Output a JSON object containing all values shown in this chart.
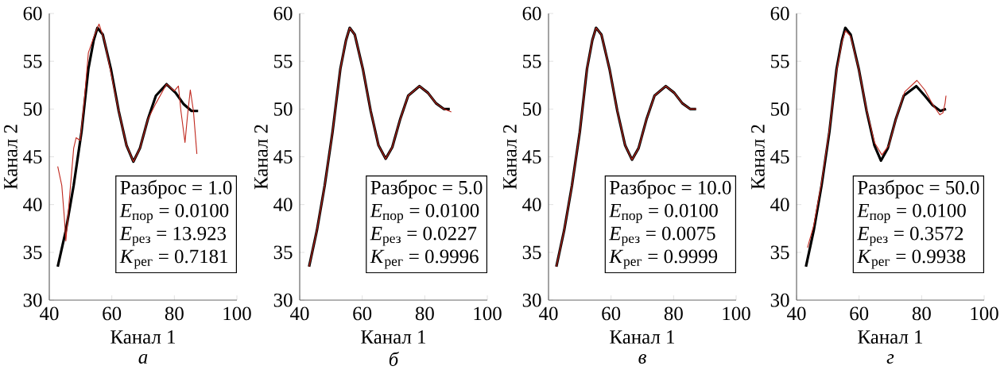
{
  "chart_data": [
    {
      "type": "line",
      "xlabel": "Канал 1",
      "ylabel": "Канал 2",
      "xlim": [
        40,
        100
      ],
      "ylim": [
        30,
        60
      ],
      "xticks": [
        40,
        60,
        80,
        100
      ],
      "yticks": [
        30,
        35,
        40,
        45,
        50,
        55,
        60
      ],
      "series": [
        {
          "color": "#000000",
          "x": [
            42.7,
            45.3,
            47.8,
            50.3,
            52.5,
            54.2,
            55.4,
            57.1,
            59.7,
            62.2,
            64.7,
            66.9,
            69.0,
            71.5,
            74.1,
            77.5,
            80.4,
            83.0,
            85.5,
            87.6
          ],
          "values": [
            33.5,
            37.3,
            42.0,
            47.6,
            54.2,
            57.2,
            58.5,
            57.8,
            54.2,
            49.8,
            46.2,
            44.5,
            45.9,
            48.9,
            51.4,
            52.6,
            51.7,
            50.5,
            49.8,
            49.8
          ]
        },
        {
          "color": "#c0281e",
          "x": [
            42.7,
            44.0,
            44.8,
            45.3,
            46.1,
            47.8,
            48.6,
            49.9,
            51.2,
            52.5,
            54.2,
            55.9,
            57.6,
            58.8,
            62.2,
            64.7,
            66.9,
            69.0,
            71.5,
            74.1,
            77.5,
            80.0,
            81.3,
            82.1,
            83.4,
            84.2,
            85.1,
            86.1,
            87.2
          ],
          "values": [
            44.0,
            42.0,
            38.7,
            36.2,
            39.3,
            45.9,
            47.0,
            46.7,
            50.9,
            55.9,
            57.5,
            58.9,
            57.2,
            55.3,
            49.8,
            46.2,
            44.5,
            45.9,
            48.9,
            50.6,
            52.6,
            51.9,
            52.4,
            49.8,
            46.5,
            49.3,
            52.0,
            49.8,
            45.3
          ]
        }
      ],
      "annotations": [
        "Разброс = 1.0",
        "*E*$_{пор}$ = 0.0100",
        "*E*$_{рез}$ = 13.923",
        "*K*$_{рег}$ = 0.7181",
        "а"
      ]
    },
    {
      "type": "line",
      "xlabel": "Канал 1",
      "ylabel": "Канал 2",
      "xlim": [
        40,
        100
      ],
      "ylim": [
        30,
        60
      ],
      "xticks": [
        40,
        60,
        80,
        100
      ],
      "yticks": [
        30,
        35,
        40,
        45,
        50,
        55,
        60
      ],
      "series": [
        {
          "color": "#000000",
          "x": [
            43.0,
            45.5,
            48.0,
            50.5,
            53.0,
            54.8,
            56.0,
            57.6,
            60.2,
            62.7,
            65.2,
            67.5,
            69.6,
            72.1,
            74.7,
            78.3,
            81.0,
            83.6,
            86.1,
            88.0
          ],
          "values": [
            33.5,
            37.3,
            42.0,
            47.6,
            54.2,
            57.2,
            58.5,
            57.8,
            54.2,
            49.8,
            46.2,
            44.8,
            46.0,
            48.9,
            51.4,
            52.4,
            51.7,
            50.6,
            50.0,
            50.0
          ]
        },
        {
          "color": "#c0281e",
          "x": [
            43.0,
            45.5,
            48.0,
            50.5,
            53.0,
            54.8,
            56.0,
            57.6,
            60.2,
            62.7,
            65.2,
            67.5,
            69.6,
            72.1,
            74.7,
            78.3,
            81.0,
            83.6,
            86.1,
            88.5
          ],
          "values": [
            33.5,
            37.3,
            42.0,
            47.6,
            54.2,
            57.2,
            58.5,
            57.8,
            54.2,
            49.8,
            46.2,
            44.8,
            46.0,
            48.9,
            51.4,
            52.4,
            51.7,
            50.6,
            50.0,
            49.7
          ]
        }
      ],
      "annotations": [
        "Разброс = 5.0",
        "*E*$_{пор}$ = 0.0100",
        "*E*$_{рез}$ = 0.0227",
        "*K*$_{рег}$ = 0.9996",
        "б"
      ]
    },
    {
      "type": "line",
      "xlabel": "Канал 1",
      "ylabel": "Канал 2",
      "xlim": [
        40,
        100
      ],
      "ylim": [
        30,
        60
      ],
      "xticks": [
        40,
        60,
        80,
        100
      ],
      "yticks": [
        30,
        35,
        40,
        45,
        50,
        55,
        60
      ],
      "series": [
        {
          "color": "#000000",
          "x": [
            42.5,
            45.0,
            47.5,
            50.0,
            52.3,
            54.0,
            55.2,
            56.9,
            59.5,
            62.0,
            64.5,
            66.7,
            68.8,
            71.3,
            73.9,
            77.5,
            80.2,
            82.8,
            85.3,
            87.2
          ],
          "values": [
            33.5,
            37.3,
            42.0,
            47.6,
            54.2,
            57.2,
            58.5,
            57.8,
            54.2,
            49.8,
            46.2,
            44.7,
            45.9,
            48.9,
            51.4,
            52.4,
            51.7,
            50.6,
            50.0,
            50.0
          ]
        },
        {
          "color": "#c0281e",
          "x": [
            42.5,
            45.0,
            47.5,
            50.0,
            52.3,
            54.0,
            55.2,
            56.9,
            59.5,
            62.0,
            64.5,
            66.7,
            68.8,
            71.3,
            73.9,
            77.5,
            80.2,
            82.8,
            85.3,
            87.2
          ],
          "values": [
            33.5,
            37.3,
            42.0,
            47.6,
            54.2,
            57.2,
            58.5,
            57.8,
            54.2,
            49.8,
            46.2,
            44.7,
            45.9,
            48.9,
            51.4,
            52.4,
            51.7,
            50.6,
            50.0,
            50.0
          ]
        }
      ],
      "annotations": [
        "Разброс = 10.0",
        "*E*$_{пор}$ = 0.0100",
        "*E*$_{рез}$ = 0.0075",
        "*K*$_{рег}$ = 0.9999",
        "в"
      ]
    },
    {
      "type": "line",
      "xlabel": "Канал 1",
      "ylabel": "Канал 2",
      "xlim": [
        40,
        100
      ],
      "ylim": [
        30,
        60
      ],
      "xticks": [
        40,
        60,
        80,
        100
      ],
      "yticks": [
        30,
        35,
        40,
        45,
        50,
        55,
        60
      ],
      "series": [
        {
          "color": "#000000",
          "x": [
            43.0,
            45.5,
            48.0,
            50.5,
            52.8,
            54.5,
            55.6,
            57.3,
            59.9,
            62.4,
            64.9,
            67.0,
            69.2,
            71.7,
            74.3,
            78.3,
            81.0,
            83.5,
            86.0,
            87.8
          ],
          "values": [
            33.5,
            37.3,
            42.0,
            47.6,
            54.2,
            57.2,
            58.5,
            57.8,
            54.2,
            49.8,
            46.2,
            44.6,
            45.9,
            48.9,
            51.4,
            52.4,
            51.4,
            50.4,
            49.8,
            50.0
          ]
        },
        {
          "color": "#c0281e",
          "x": [
            43.5,
            45.5,
            48.0,
            50.5,
            52.8,
            54.5,
            55.6,
            57.3,
            59.9,
            62.4,
            64.9,
            67.3,
            69.5,
            72.0,
            74.6,
            78.5,
            81.0,
            83.5,
            85.8,
            86.8,
            87.5,
            87.8
          ],
          "values": [
            35.5,
            37.8,
            42.3,
            47.8,
            54.0,
            57.0,
            58.2,
            57.6,
            54.2,
            49.9,
            46.5,
            45.2,
            46.2,
            49.2,
            51.8,
            53.0,
            52.0,
            50.5,
            49.4,
            49.6,
            50.6,
            51.4
          ]
        }
      ],
      "annotations": [
        "Разброс = 50.0",
        "*E*$_{пор}$ = 0.0100",
        "*E*$_{рез}$ = 0.3572",
        "*K*$_{рег}$ = 0.9938",
        "г"
      ]
    }
  ]
}
